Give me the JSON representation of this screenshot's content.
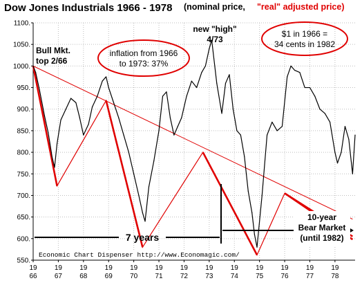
{
  "chart_data": {
    "type": "line",
    "title": "Dow Jones Industrials 1966 - 1978",
    "subtitle_black": "(nominal price,",
    "subtitle_red": "\"real\" adjusted price)",
    "xlabel": "",
    "ylabel": "",
    "ylim": [
      550,
      1100
    ],
    "xlim": [
      1966.0,
      1978.8
    ],
    "grid": true,
    "y_ticks": [
      550,
      600,
      650,
      700,
      750,
      800,
      850,
      900,
      950,
      1000,
      1050,
      1100
    ],
    "y_tick_labels": [
      "550.",
      "600.",
      "650.",
      "700.",
      "750.",
      "800.",
      "850.",
      "900.",
      "950.",
      "1000.",
      "1050.",
      "1100."
    ],
    "x_ticks": [
      1966,
      1967,
      1968,
      1969,
      1970,
      1971,
      1972,
      1973,
      1974,
      1975,
      1976,
      1977,
      1978
    ],
    "x_tick_labels": [
      [
        "19",
        "66"
      ],
      [
        "19",
        "67"
      ],
      [
        "19",
        "68"
      ],
      [
        "19",
        "69"
      ],
      [
        "19",
        "70"
      ],
      [
        "19",
        "71"
      ],
      [
        "19",
        "72"
      ],
      [
        "19",
        "73"
      ],
      [
        "19",
        "74"
      ],
      [
        "19",
        "75"
      ],
      [
        "19",
        "76"
      ],
      [
        "19",
        "77"
      ],
      [
        "19",
        "78"
      ]
    ],
    "series": [
      {
        "name": "",
        "color": "#000000",
        "x": [
          1966.0,
          1966.1,
          1966.25,
          1966.45,
          1966.6,
          1966.75,
          1966.85,
          1966.95,
          1967.1,
          1967.3,
          1967.5,
          1967.7,
          1967.85,
          1968.0,
          1968.2,
          1968.35,
          1968.55,
          1968.75,
          1968.9,
          1969.0,
          1969.2,
          1969.4,
          1969.6,
          1969.8,
          1970.0,
          1970.2,
          1970.35,
          1970.45,
          1970.6,
          1970.8,
          1971.0,
          1971.15,
          1971.3,
          1971.45,
          1971.6,
          1971.75,
          1971.9,
          1972.1,
          1972.3,
          1972.5,
          1972.7,
          1972.85,
          1973.0,
          1973.1,
          1973.3,
          1973.5,
          1973.65,
          1973.8,
          1973.95,
          1974.1,
          1974.25,
          1974.4,
          1974.55,
          1974.7,
          1974.8,
          1974.9,
          1975.1,
          1975.3,
          1975.5,
          1975.7,
          1975.9,
          1976.1,
          1976.25,
          1976.4,
          1976.6,
          1976.8,
          1977.0,
          1977.2,
          1977.4,
          1977.6,
          1977.8,
          1978.0,
          1978.1,
          1978.25,
          1978.4,
          1978.55,
          1978.7,
          1978.8
        ],
        "values": [
          1000,
          985,
          945,
          885,
          845,
          790,
          765,
          820,
          875,
          900,
          925,
          915,
          880,
          840,
          865,
          905,
          930,
          965,
          975,
          950,
          915,
          880,
          840,
          800,
          750,
          700,
          660,
          640,
          720,
          780,
          850,
          930,
          940,
          880,
          840,
          860,
          880,
          930,
          965,
          950,
          985,
          1000,
          1040,
          1060,
          960,
          890,
          960,
          980,
          900,
          850,
          840,
          790,
          710,
          660,
          610,
          580,
          700,
          840,
          870,
          850,
          860,
          975,
          1000,
          990,
          985,
          950,
          950,
          930,
          900,
          890,
          870,
          800,
          775,
          800,
          860,
          830,
          750,
          840
        ]
      }
    ],
    "overlay_lines": [
      {
        "name": "long-term-trendline",
        "color": "#e00000",
        "x": [
          1966.0,
          1978.7
        ],
        "values": [
          1000,
          645
        ]
      },
      {
        "name": "zigzag",
        "color": "#e00000",
        "x": [
          1966.0,
          1966.95,
          1968.9,
          1970.35,
          1972.75,
          1974.9,
          1976.0,
          1978.7
        ],
        "values": [
          1000,
          722,
          920,
          580,
          800,
          562,
          705,
          598
        ]
      },
      {
        "name": "bear-market-extension",
        "color": "#e00000",
        "x": [
          1976.0,
          1978.7
        ],
        "values": [
          705,
          605
        ]
      }
    ],
    "annotations": {
      "bull_line1": "Bull Mkt.",
      "bull_line2": "top 2/66",
      "inflation_line1": "inflation from 1966",
      "inflation_line2": "to 1973: 37%",
      "newhigh_line1": "new \"high\"",
      "newhigh_line2": "4/73",
      "dollar_line1": "$1 in 1966 =",
      "dollar_line2": "34 cents in 1982",
      "seven_years": "7 years",
      "bear_line1": "10-year",
      "bear_line2": "Bear Market",
      "bear_line3": "(until 1982)",
      "credit": "Economic Chart Dispenser  http://www.Economagic.com/"
    },
    "colors": {
      "accent_red": "#e00000",
      "grid": "#bdbdbd",
      "price": "#000000"
    }
  }
}
